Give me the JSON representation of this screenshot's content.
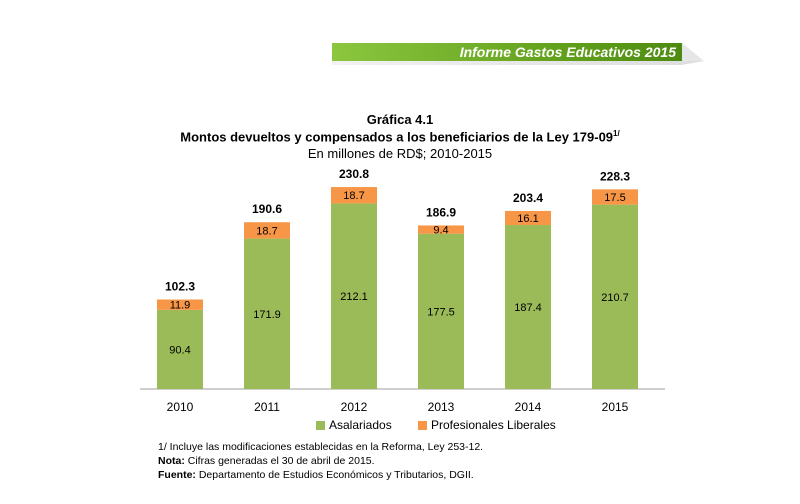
{
  "header": {
    "title": "Informe Gastos Educativos 2015"
  },
  "chart_data": {
    "type": "bar",
    "stacked": true,
    "title": "Gráfica 4.1",
    "subtitle": "Montos devueltos y compensados a los beneficiarios de la Ley 179-09",
    "subtitle_superscript": "1/",
    "units": "En millones de RD$; 2010-2015",
    "categories": [
      "2010",
      "2011",
      "2012",
      "2013",
      "2014",
      "2015"
    ],
    "series": [
      {
        "name": "Asalariados",
        "color": "#9bbb59",
        "values": [
          90.4,
          171.9,
          212.1,
          177.5,
          187.4,
          210.7
        ]
      },
      {
        "name": "Profesionales Liberales",
        "color": "#f79646",
        "values": [
          11.9,
          18.7,
          18.7,
          9.4,
          16.1,
          17.5
        ]
      }
    ],
    "totals": [
      102.3,
      190.6,
      230.8,
      186.9,
      203.4,
      228.3
    ],
    "legend": "bottom",
    "grid": false
  },
  "footer": {
    "note1": "1/ Incluye las modificaciones establecidas en la Reforma, Ley 253-12.",
    "nota_label": "Nota:",
    "nota_text": " Cifras generadas el 30 de abril de 2015.",
    "fuente_label": "Fuente:",
    "fuente_text": " Departamento de Estudios Económicos y Tributarios, DGII."
  }
}
